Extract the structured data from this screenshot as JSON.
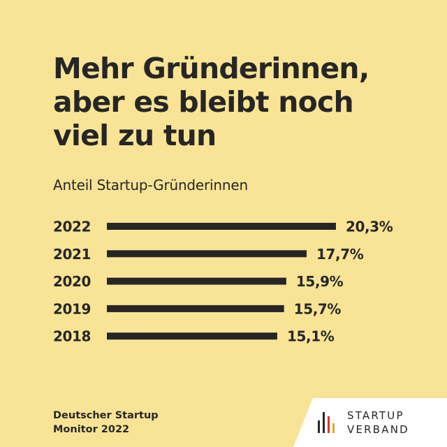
{
  "colors": {
    "background": "#f9e496",
    "text": "#262626",
    "bar": "#262626",
    "logo_panel": "#ffffff",
    "logo_accent_red": "#d13b2e",
    "logo_accent_gold": "#e9a81f"
  },
  "header": {
    "title_lines": [
      "Mehr Gründerinnen,",
      "aber es bleibt noch",
      "viel zu tun"
    ],
    "subtitle": "Anteil Startup-Gründerinnen"
  },
  "chart_data": {
    "type": "bar",
    "orientation": "horizontal",
    "title": "",
    "xlabel": "",
    "ylabel": "",
    "categories": [
      "2022",
      "2021",
      "2020",
      "2019",
      "2018"
    ],
    "values": [
      20.3,
      17.7,
      15.9,
      15.7,
      15.1
    ],
    "value_labels": [
      "20,3%",
      "17,7%",
      "15,9%",
      "15,7%",
      "15,1%"
    ],
    "unit": "%",
    "xlim": [
      0,
      20.3
    ],
    "grid": false,
    "legend": "none"
  },
  "footer": {
    "source_lines": [
      "Deutscher Startup",
      "Monitor 2022"
    ],
    "logo_lines": [
      "STARTUP",
      "VERBAND"
    ],
    "logo_icon": "bar-stripes-icon"
  }
}
